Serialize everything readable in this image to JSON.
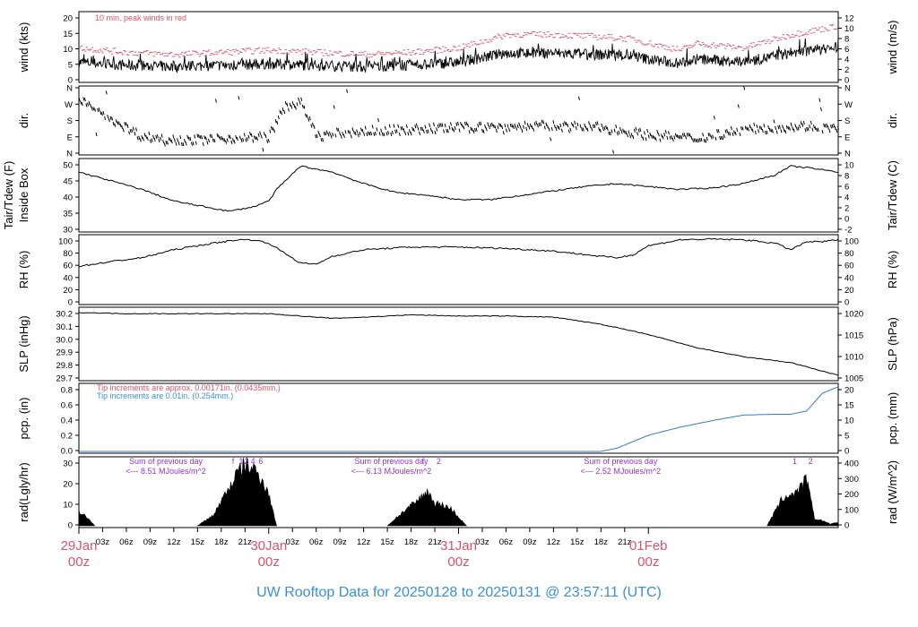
{
  "title": "UW Rooftop Data for 20250128  to  20250131 @ 23:57:11  (UTC)",
  "colors": {
    "title": "#3a8fd6",
    "date_labels": "#d9536b",
    "wind_peak": "#d9536b",
    "precip_note1": "#d9536b",
    "precip_note2": "#3a8fd6",
    "precip_line": "#3b78c8",
    "rad_notes": "#9a2fd4",
    "trace": "#000000"
  },
  "time_axis": {
    "hour_ticks": [
      "03z",
      "06z",
      "09z",
      "12z",
      "15z",
      "18z",
      "21z",
      "03z",
      "06z",
      "09z",
      "12z",
      "15z",
      "18z",
      "21z",
      "03z",
      "06z",
      "09z",
      "12z",
      "15z",
      "18z",
      "21z"
    ],
    "day_labels": [
      {
        "date": "29Jan",
        "hour": "00z"
      },
      {
        "date": "30Jan",
        "hour": "00z"
      },
      {
        "date": "31Jan",
        "hour": "00z"
      },
      {
        "date": "01Feb",
        "hour": "00z"
      }
    ]
  },
  "chart_data": [
    {
      "id": "wind",
      "type": "line",
      "ylabel_left": "wind (kts)",
      "ylabel_right": "wind (m/s)",
      "left_ticks": [
        "0",
        "5",
        "10",
        "15",
        "20"
      ],
      "right_ticks": [
        "0",
        "2",
        "4",
        "6",
        "8",
        "10",
        "12"
      ],
      "ylim": [
        0,
        22
      ],
      "annotation": "10 min. peak winds in red",
      "series": [
        {
          "x_hours": [
            0,
            6,
            12,
            18,
            24,
            30,
            36,
            42,
            48,
            54,
            60,
            66,
            70,
            72,
            76,
            78,
            84,
            90,
            96
          ],
          "values": [
            6,
            5,
            4.5,
            5,
            5.5,
            5,
            4.5,
            5,
            6,
            9,
            9,
            8.5,
            8,
            7,
            5.5,
            7,
            6,
            9,
            11
          ]
        }
      ]
    },
    {
      "id": "dir",
      "type": "scatter",
      "ylabel_left": "dir.",
      "ylabel_right": "dir.",
      "left_ticks": [
        "N",
        "E",
        "S",
        "W",
        "N"
      ],
      "right_ticks": [
        "N",
        "E",
        "S",
        "W",
        "N"
      ],
      "ylim": [
        0,
        360
      ]
    },
    {
      "id": "temp",
      "type": "line",
      "ylabel_left": "Tair/Tdew (F)",
      "ylabel_left2": "Inside Box",
      "ylabel_right": "Tair/Tdew (C)",
      "left_ticks": [
        "30",
        "35",
        "40",
        "45",
        "50"
      ],
      "right_ticks": [
        "-2",
        "0",
        "2",
        "4",
        "6",
        "8",
        "10"
      ],
      "ylim": [
        28,
        52
      ],
      "series": [
        {
          "x_hours": [
            0,
            4,
            8,
            12,
            16,
            19,
            22,
            24,
            25,
            28,
            32,
            36,
            40,
            44,
            48,
            52,
            56,
            60,
            64,
            68,
            72,
            76,
            80,
            84,
            88,
            90,
            92,
            96
          ],
          "values": [
            48,
            45,
            42,
            38,
            36,
            34.5,
            36,
            38,
            42,
            50,
            48,
            44,
            41,
            40,
            38.5,
            38.5,
            40,
            41.5,
            43,
            44,
            43,
            42,
            42.5,
            44,
            47,
            50,
            49.5,
            48
          ]
        }
      ]
    },
    {
      "id": "rh",
      "type": "line",
      "ylabel_left": "RH (%)",
      "ylabel_right": "RH (%)",
      "left_ticks": [
        "0",
        "20",
        "40",
        "60",
        "80",
        "100"
      ],
      "right_ticks": [
        "0",
        "20",
        "40",
        "60",
        "80",
        "100"
      ],
      "ylim": [
        0,
        100
      ],
      "series": [
        {
          "x_hours": [
            0,
            4,
            8,
            12,
            16,
            20,
            22,
            24,
            26,
            28,
            30,
            32,
            36,
            42,
            48,
            54,
            60,
            66,
            68,
            70,
            72,
            76,
            80,
            84,
            88,
            90,
            92,
            94,
            96
          ],
          "values": [
            55,
            62,
            68,
            80,
            88,
            95,
            95,
            90,
            75,
            60,
            58,
            70,
            80,
            84,
            84,
            82,
            78,
            70,
            68,
            72,
            86,
            95,
            96,
            95,
            90,
            80,
            92,
            92,
            95
          ]
        }
      ]
    },
    {
      "id": "slp",
      "type": "line",
      "ylabel_left": "SLP (inHg)",
      "ylabel_right": "SLP (hPa)",
      "left_ticks": [
        "29.7",
        "29.8",
        "29.9",
        "30.0",
        "30.1",
        "30.2"
      ],
      "right_ticks": [
        "1005",
        "1010",
        "1015",
        "1020"
      ],
      "ylim": [
        29.65,
        30.25
      ],
      "series": [
        {
          "x_hours": [
            0,
            6,
            12,
            18,
            24,
            28,
            32,
            36,
            42,
            48,
            54,
            60,
            66,
            72,
            78,
            84,
            90,
            96
          ],
          "values": [
            30.22,
            30.21,
            30.21,
            30.21,
            30.21,
            30.19,
            30.17,
            30.18,
            30.2,
            30.19,
            30.19,
            30.18,
            30.12,
            30.03,
            29.92,
            29.84,
            29.79,
            29.68
          ]
        }
      ]
    },
    {
      "id": "pcp",
      "type": "line",
      "ylabel_left": "pcp. (in)",
      "ylabel_right": "pcp. (mm)",
      "left_ticks": [
        "0.0",
        "0.2",
        "0.4",
        "0.6",
        "0.8"
      ],
      "right_ticks": [
        "0",
        "5",
        "10",
        "15",
        "20"
      ],
      "ylim": [
        0,
        0.82
      ],
      "notes": [
        "Tip increments are approx. 0.00171in. (0.0435mm.)",
        "Tip increments are 0.01in. (0.254mm.)"
      ],
      "series": [
        {
          "x_hours": [
            0,
            66,
            68,
            72,
            76,
            80,
            84,
            88,
            90,
            92,
            94,
            96
          ],
          "values": [
            0,
            0,
            0.04,
            0.2,
            0.3,
            0.38,
            0.45,
            0.46,
            0.46,
            0.5,
            0.72,
            0.8
          ]
        }
      ]
    },
    {
      "id": "rad",
      "type": "area",
      "ylabel_left": "rad(Lgly/hr)",
      "ylabel_right": "rad (W/m^2)",
      "left_ticks": [
        "0",
        "10",
        "20",
        "30"
      ],
      "right_ticks": [
        "0",
        "100",
        "200",
        "300",
        "400"
      ],
      "ylim": [
        0,
        36
      ],
      "annotations": [
        {
          "line1": "Sum of previous day",
          "line2": "<--- 8.51 MJoules/m^2"
        },
        {
          "line1": "Sum of previous day",
          "line2": "<--- 6.13 MJoules/m^2"
        },
        {
          "line1": "Sum of previous day",
          "line2": "<--- 2.52 MJoules/m^2"
        }
      ],
      "markers": [
        {
          "hour": 19.5,
          "label": "f"
        },
        {
          "hour": 21.2,
          "label": "2"
        },
        {
          "hour": 22.0,
          "label": "4"
        },
        {
          "hour": 23.0,
          "label": "6"
        },
        {
          "hour": 20.5,
          "label": "1"
        },
        {
          "hour": 43.5,
          "label": "f"
        },
        {
          "hour": 45.5,
          "label": "2"
        },
        {
          "hour": 90.5,
          "label": "1"
        },
        {
          "hour": 92.5,
          "label": "2"
        }
      ],
      "series": [
        {
          "name": "day1",
          "x_hours": [
            0,
            1,
            2
          ],
          "values": [
            8,
            5,
            0
          ]
        },
        {
          "name": "day2",
          "x_hours": [
            15,
            17,
            19,
            20,
            21,
            22,
            23,
            24,
            25
          ],
          "values": [
            0,
            6,
            22,
            30,
            35,
            33,
            28,
            18,
            0
          ]
        },
        {
          "name": "day3",
          "x_hours": [
            39,
            41,
            43,
            44,
            45,
            46,
            47,
            48,
            49
          ],
          "values": [
            0,
            8,
            15,
            20,
            13,
            12,
            10,
            5,
            0
          ]
        },
        {
          "name": "day4",
          "x_hours": [
            87,
            88,
            89,
            90,
            91,
            92,
            93,
            94,
            95,
            96
          ],
          "values": [
            0,
            8,
            16,
            18,
            20,
            27,
            4,
            3,
            1,
            2
          ]
        }
      ]
    }
  ]
}
